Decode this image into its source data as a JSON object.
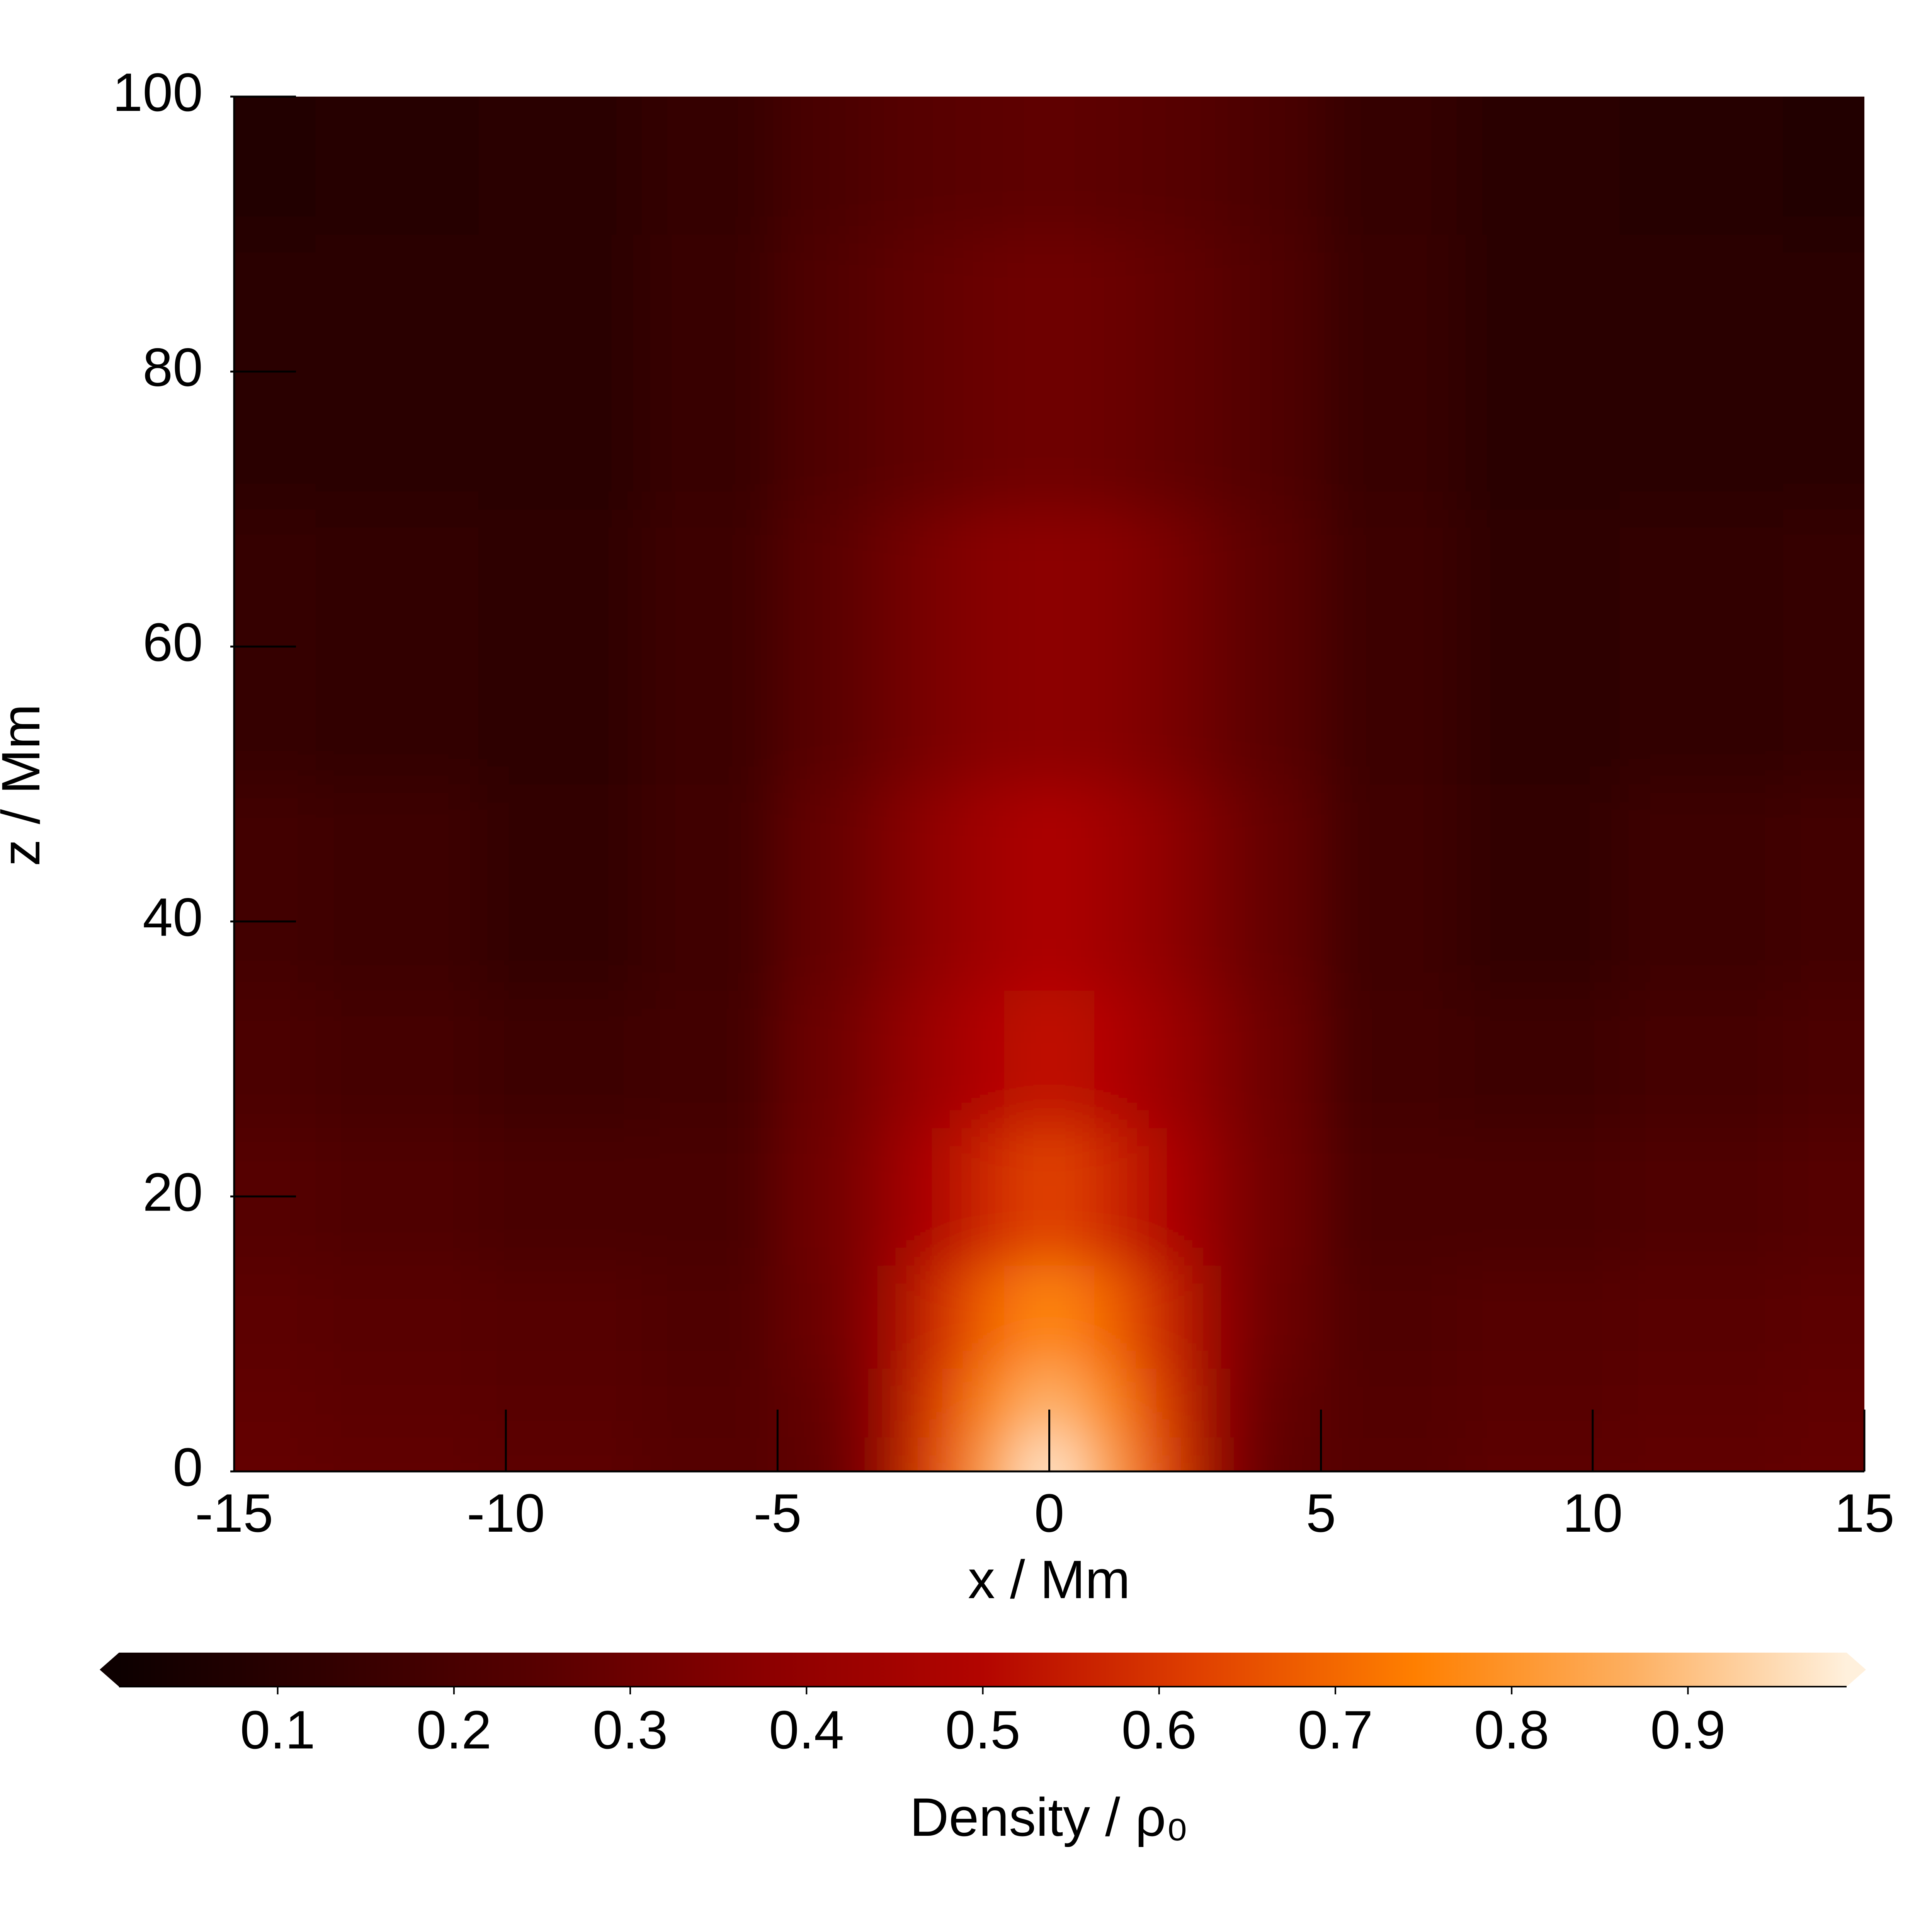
{
  "chart_data": {
    "type": "heatmap",
    "x_label": "x / Mm",
    "y_label": "z / Mm",
    "x": [
      -15,
      -12,
      -9,
      -6,
      -4,
      -3,
      -2,
      -1,
      0,
      1,
      2,
      3,
      4,
      6,
      9,
      12,
      15
    ],
    "y": [
      0,
      5,
      10,
      20,
      30,
      40,
      60,
      80,
      100
    ],
    "values": [
      [
        0.28,
        0.27,
        0.26,
        0.24,
        0.27,
        0.42,
        0.65,
        0.85,
        0.98,
        0.85,
        0.65,
        0.42,
        0.27,
        0.24,
        0.26,
        0.27,
        0.28
      ],
      [
        0.27,
        0.26,
        0.25,
        0.23,
        0.28,
        0.42,
        0.62,
        0.78,
        0.88,
        0.78,
        0.62,
        0.42,
        0.28,
        0.23,
        0.25,
        0.26,
        0.27
      ],
      [
        0.26,
        0.25,
        0.24,
        0.22,
        0.3,
        0.42,
        0.58,
        0.7,
        0.77,
        0.7,
        0.58,
        0.42,
        0.3,
        0.22,
        0.24,
        0.25,
        0.26
      ],
      [
        0.24,
        0.22,
        0.2,
        0.2,
        0.31,
        0.4,
        0.5,
        0.58,
        0.63,
        0.58,
        0.5,
        0.4,
        0.31,
        0.2,
        0.2,
        0.22,
        0.24
      ],
      [
        0.21,
        0.19,
        0.16,
        0.18,
        0.3,
        0.37,
        0.44,
        0.5,
        0.54,
        0.5,
        0.44,
        0.37,
        0.3,
        0.18,
        0.16,
        0.19,
        0.21
      ],
      [
        0.18,
        0.16,
        0.13,
        0.17,
        0.28,
        0.34,
        0.4,
        0.45,
        0.48,
        0.45,
        0.4,
        0.34,
        0.28,
        0.17,
        0.13,
        0.16,
        0.18
      ],
      [
        0.14,
        0.13,
        0.12,
        0.16,
        0.25,
        0.3,
        0.34,
        0.37,
        0.38,
        0.37,
        0.34,
        0.3,
        0.25,
        0.16,
        0.12,
        0.13,
        0.14
      ],
      [
        0.11,
        0.11,
        0.11,
        0.15,
        0.22,
        0.26,
        0.28,
        0.3,
        0.31,
        0.3,
        0.28,
        0.26,
        0.22,
        0.15,
        0.11,
        0.11,
        0.11
      ],
      [
        0.08,
        0.09,
        0.1,
        0.14,
        0.2,
        0.23,
        0.25,
        0.26,
        0.27,
        0.26,
        0.25,
        0.23,
        0.2,
        0.14,
        0.1,
        0.09,
        0.08
      ]
    ],
    "xlim": [
      -15,
      15
    ],
    "xticks": [
      -15,
      -10,
      -5,
      0,
      5,
      10,
      15
    ],
    "ylim": [
      0,
      100
    ],
    "yticks": [
      0,
      20,
      40,
      60,
      80,
      100
    ],
    "colormap": [
      "#0d0000",
      "#330000",
      "#5a0000",
      "#8c0000",
      "#b30500",
      "#e04000",
      "#ff7f00",
      "#fdaf60",
      "#fff0dc"
    ],
    "clim": [
      0.01,
      0.99
    ],
    "colorbar_ticks": [
      0.1,
      0.2,
      0.3,
      0.4,
      0.5,
      0.6,
      0.7,
      0.8,
      0.9
    ],
    "colorbar_label": "Density / ρ₀"
  }
}
